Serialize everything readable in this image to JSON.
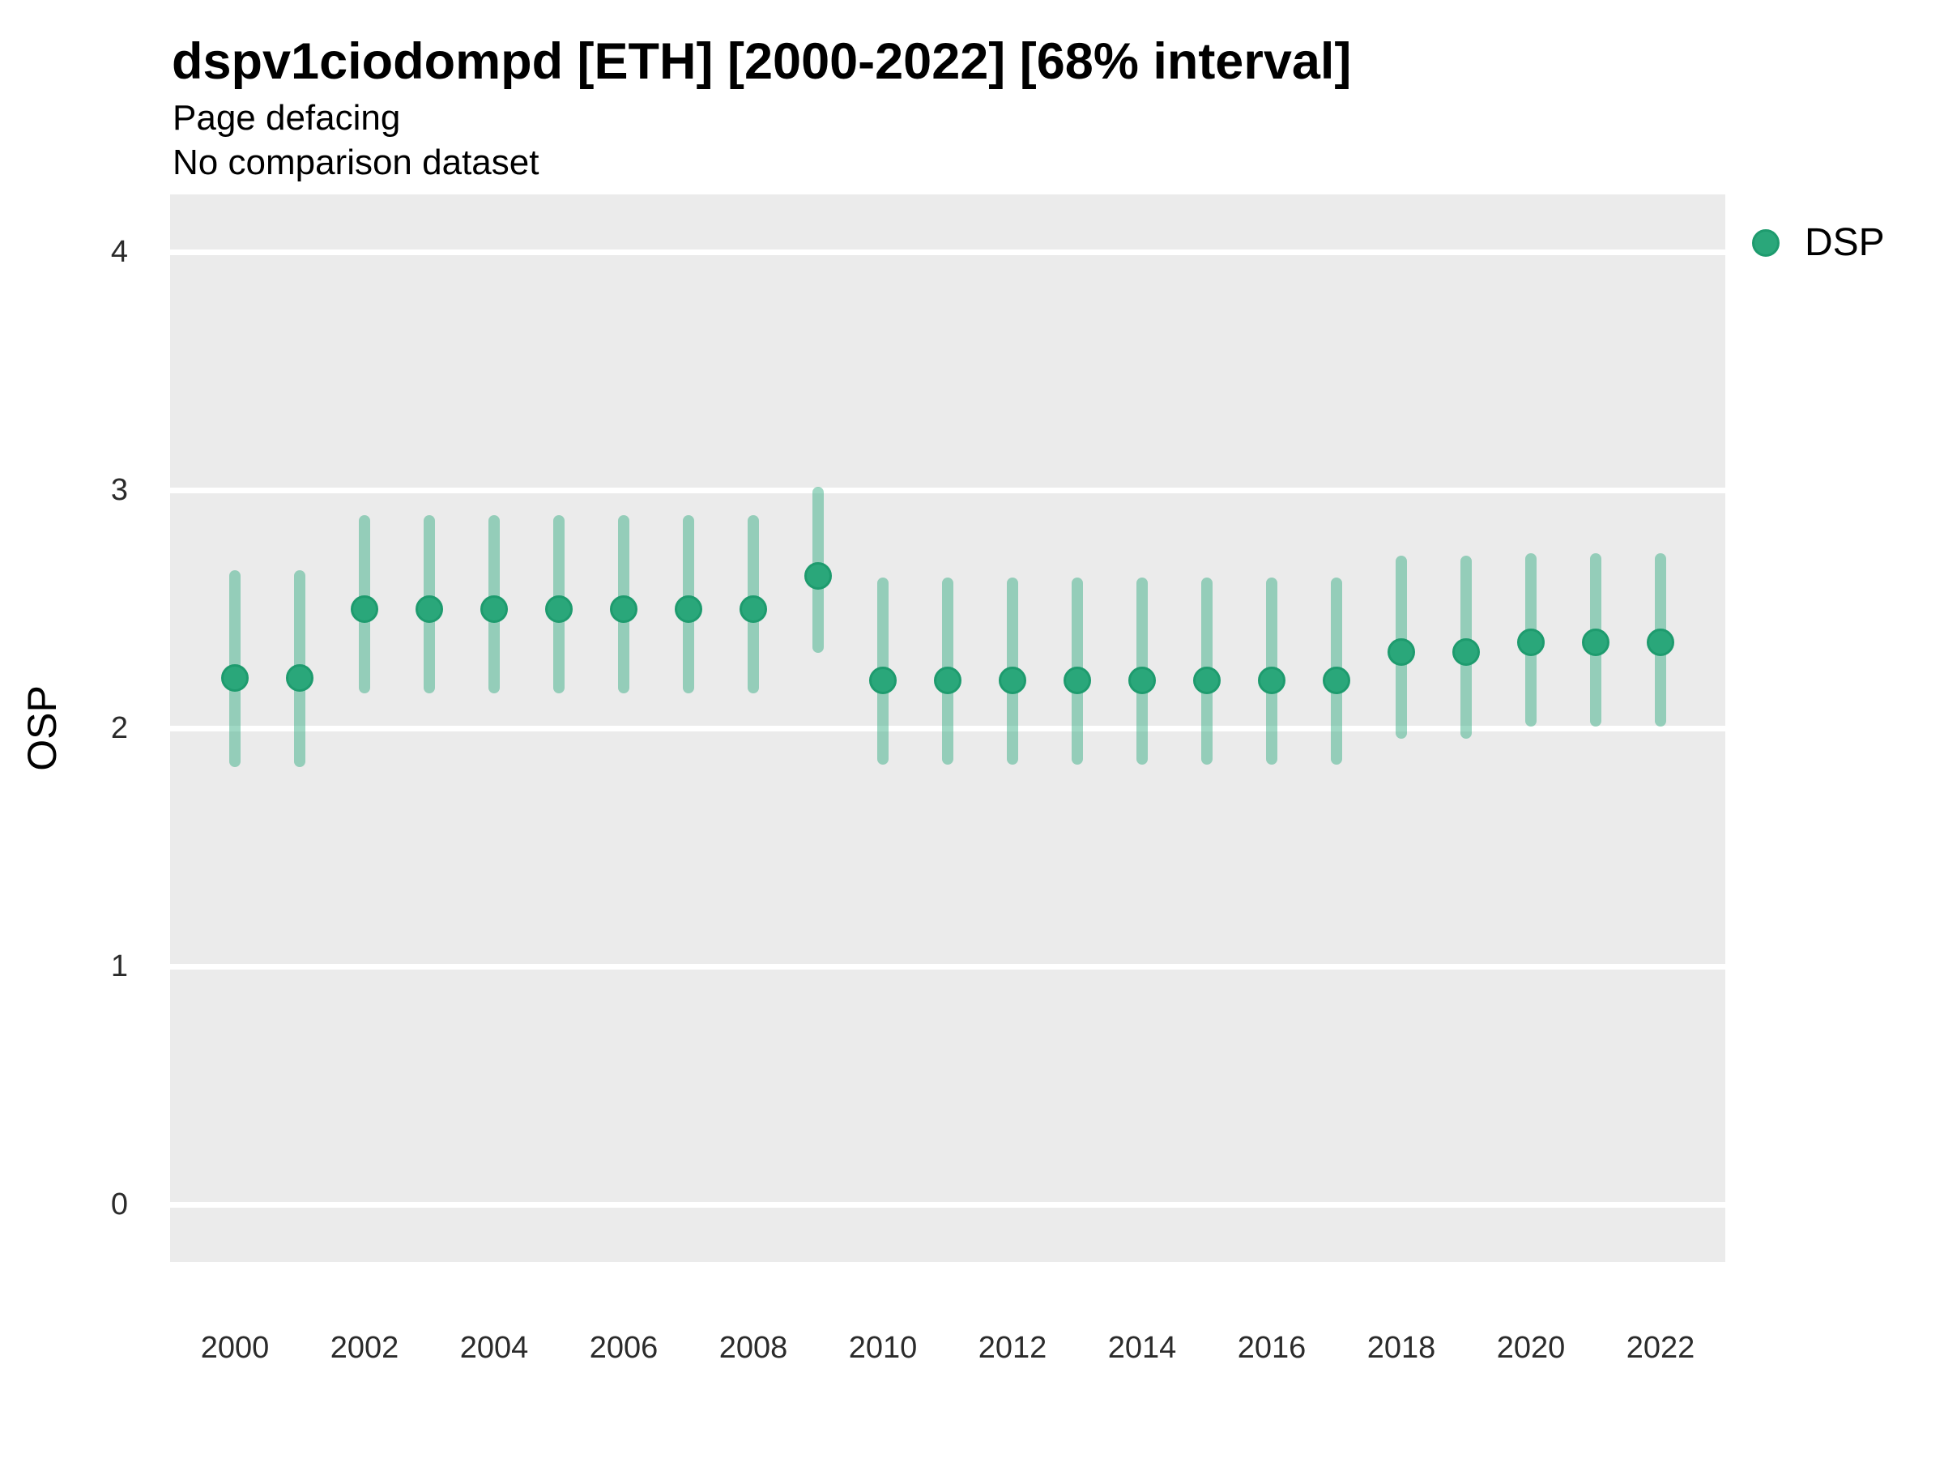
{
  "header": {
    "title": "dspv1ciodompd [ETH] [2000-2022] [68% interval]",
    "subtitle": "Page defacing",
    "note": "No comparison dataset"
  },
  "legend": {
    "position": "top-right",
    "items": [
      {
        "label": "DSP",
        "color": "#2AA77A"
      }
    ]
  },
  "chart_data": {
    "type": "pointrange",
    "title": "dspv1ciodompd [ETH] [2000-2022] [68% interval]",
    "subtitle": "Page defacing",
    "note": "No comparison dataset",
    "interval": "68%",
    "xlabel": "",
    "ylabel": "OSP",
    "ylim": [
      -0.24,
      4.24
    ],
    "yticks": [
      0,
      1,
      2,
      3,
      4
    ],
    "xticks": [
      2000,
      2002,
      2004,
      2006,
      2008,
      2010,
      2012,
      2014,
      2016,
      2018,
      2020,
      2022
    ],
    "grid": "horizontal-major-white-on-gray",
    "panel_background": "#EBEBEB",
    "gridline_color": "#FFFFFF",
    "point_fill": "#2AA77A",
    "point_stroke": "#1E9B6E",
    "interval_color": "rgba(42,169,124,0.45)",
    "series": [
      {
        "name": "DSP",
        "color": "#2AA77A",
        "points": [
          {
            "year": 2000,
            "value": 2.21,
            "lo": 1.86,
            "hi": 2.64
          },
          {
            "year": 2001,
            "value": 2.21,
            "lo": 1.86,
            "hi": 2.64
          },
          {
            "year": 2002,
            "value": 2.5,
            "lo": 2.17,
            "hi": 2.87
          },
          {
            "year": 2003,
            "value": 2.5,
            "lo": 2.17,
            "hi": 2.87
          },
          {
            "year": 2004,
            "value": 2.5,
            "lo": 2.17,
            "hi": 2.87
          },
          {
            "year": 2005,
            "value": 2.5,
            "lo": 2.17,
            "hi": 2.87
          },
          {
            "year": 2006,
            "value": 2.5,
            "lo": 2.17,
            "hi": 2.87
          },
          {
            "year": 2007,
            "value": 2.5,
            "lo": 2.17,
            "hi": 2.87
          },
          {
            "year": 2008,
            "value": 2.5,
            "lo": 2.17,
            "hi": 2.87
          },
          {
            "year": 2009,
            "value": 2.64,
            "lo": 2.34,
            "hi": 2.99
          },
          {
            "year": 2010,
            "value": 2.2,
            "lo": 1.87,
            "hi": 2.61
          },
          {
            "year": 2011,
            "value": 2.2,
            "lo": 1.87,
            "hi": 2.61
          },
          {
            "year": 2012,
            "value": 2.2,
            "lo": 1.87,
            "hi": 2.61
          },
          {
            "year": 2013,
            "value": 2.2,
            "lo": 1.87,
            "hi": 2.61
          },
          {
            "year": 2014,
            "value": 2.2,
            "lo": 1.87,
            "hi": 2.61
          },
          {
            "year": 2015,
            "value": 2.2,
            "lo": 1.87,
            "hi": 2.61
          },
          {
            "year": 2016,
            "value": 2.2,
            "lo": 1.87,
            "hi": 2.61
          },
          {
            "year": 2017,
            "value": 2.2,
            "lo": 1.87,
            "hi": 2.61
          },
          {
            "year": 2018,
            "value": 2.32,
            "lo": 1.98,
            "hi": 2.7
          },
          {
            "year": 2019,
            "value": 2.32,
            "lo": 1.98,
            "hi": 2.7
          },
          {
            "year": 2020,
            "value": 2.36,
            "lo": 2.03,
            "hi": 2.71
          },
          {
            "year": 2021,
            "value": 2.36,
            "lo": 2.03,
            "hi": 2.71
          },
          {
            "year": 2022,
            "value": 2.36,
            "lo": 2.03,
            "hi": 2.71
          }
        ]
      }
    ]
  }
}
